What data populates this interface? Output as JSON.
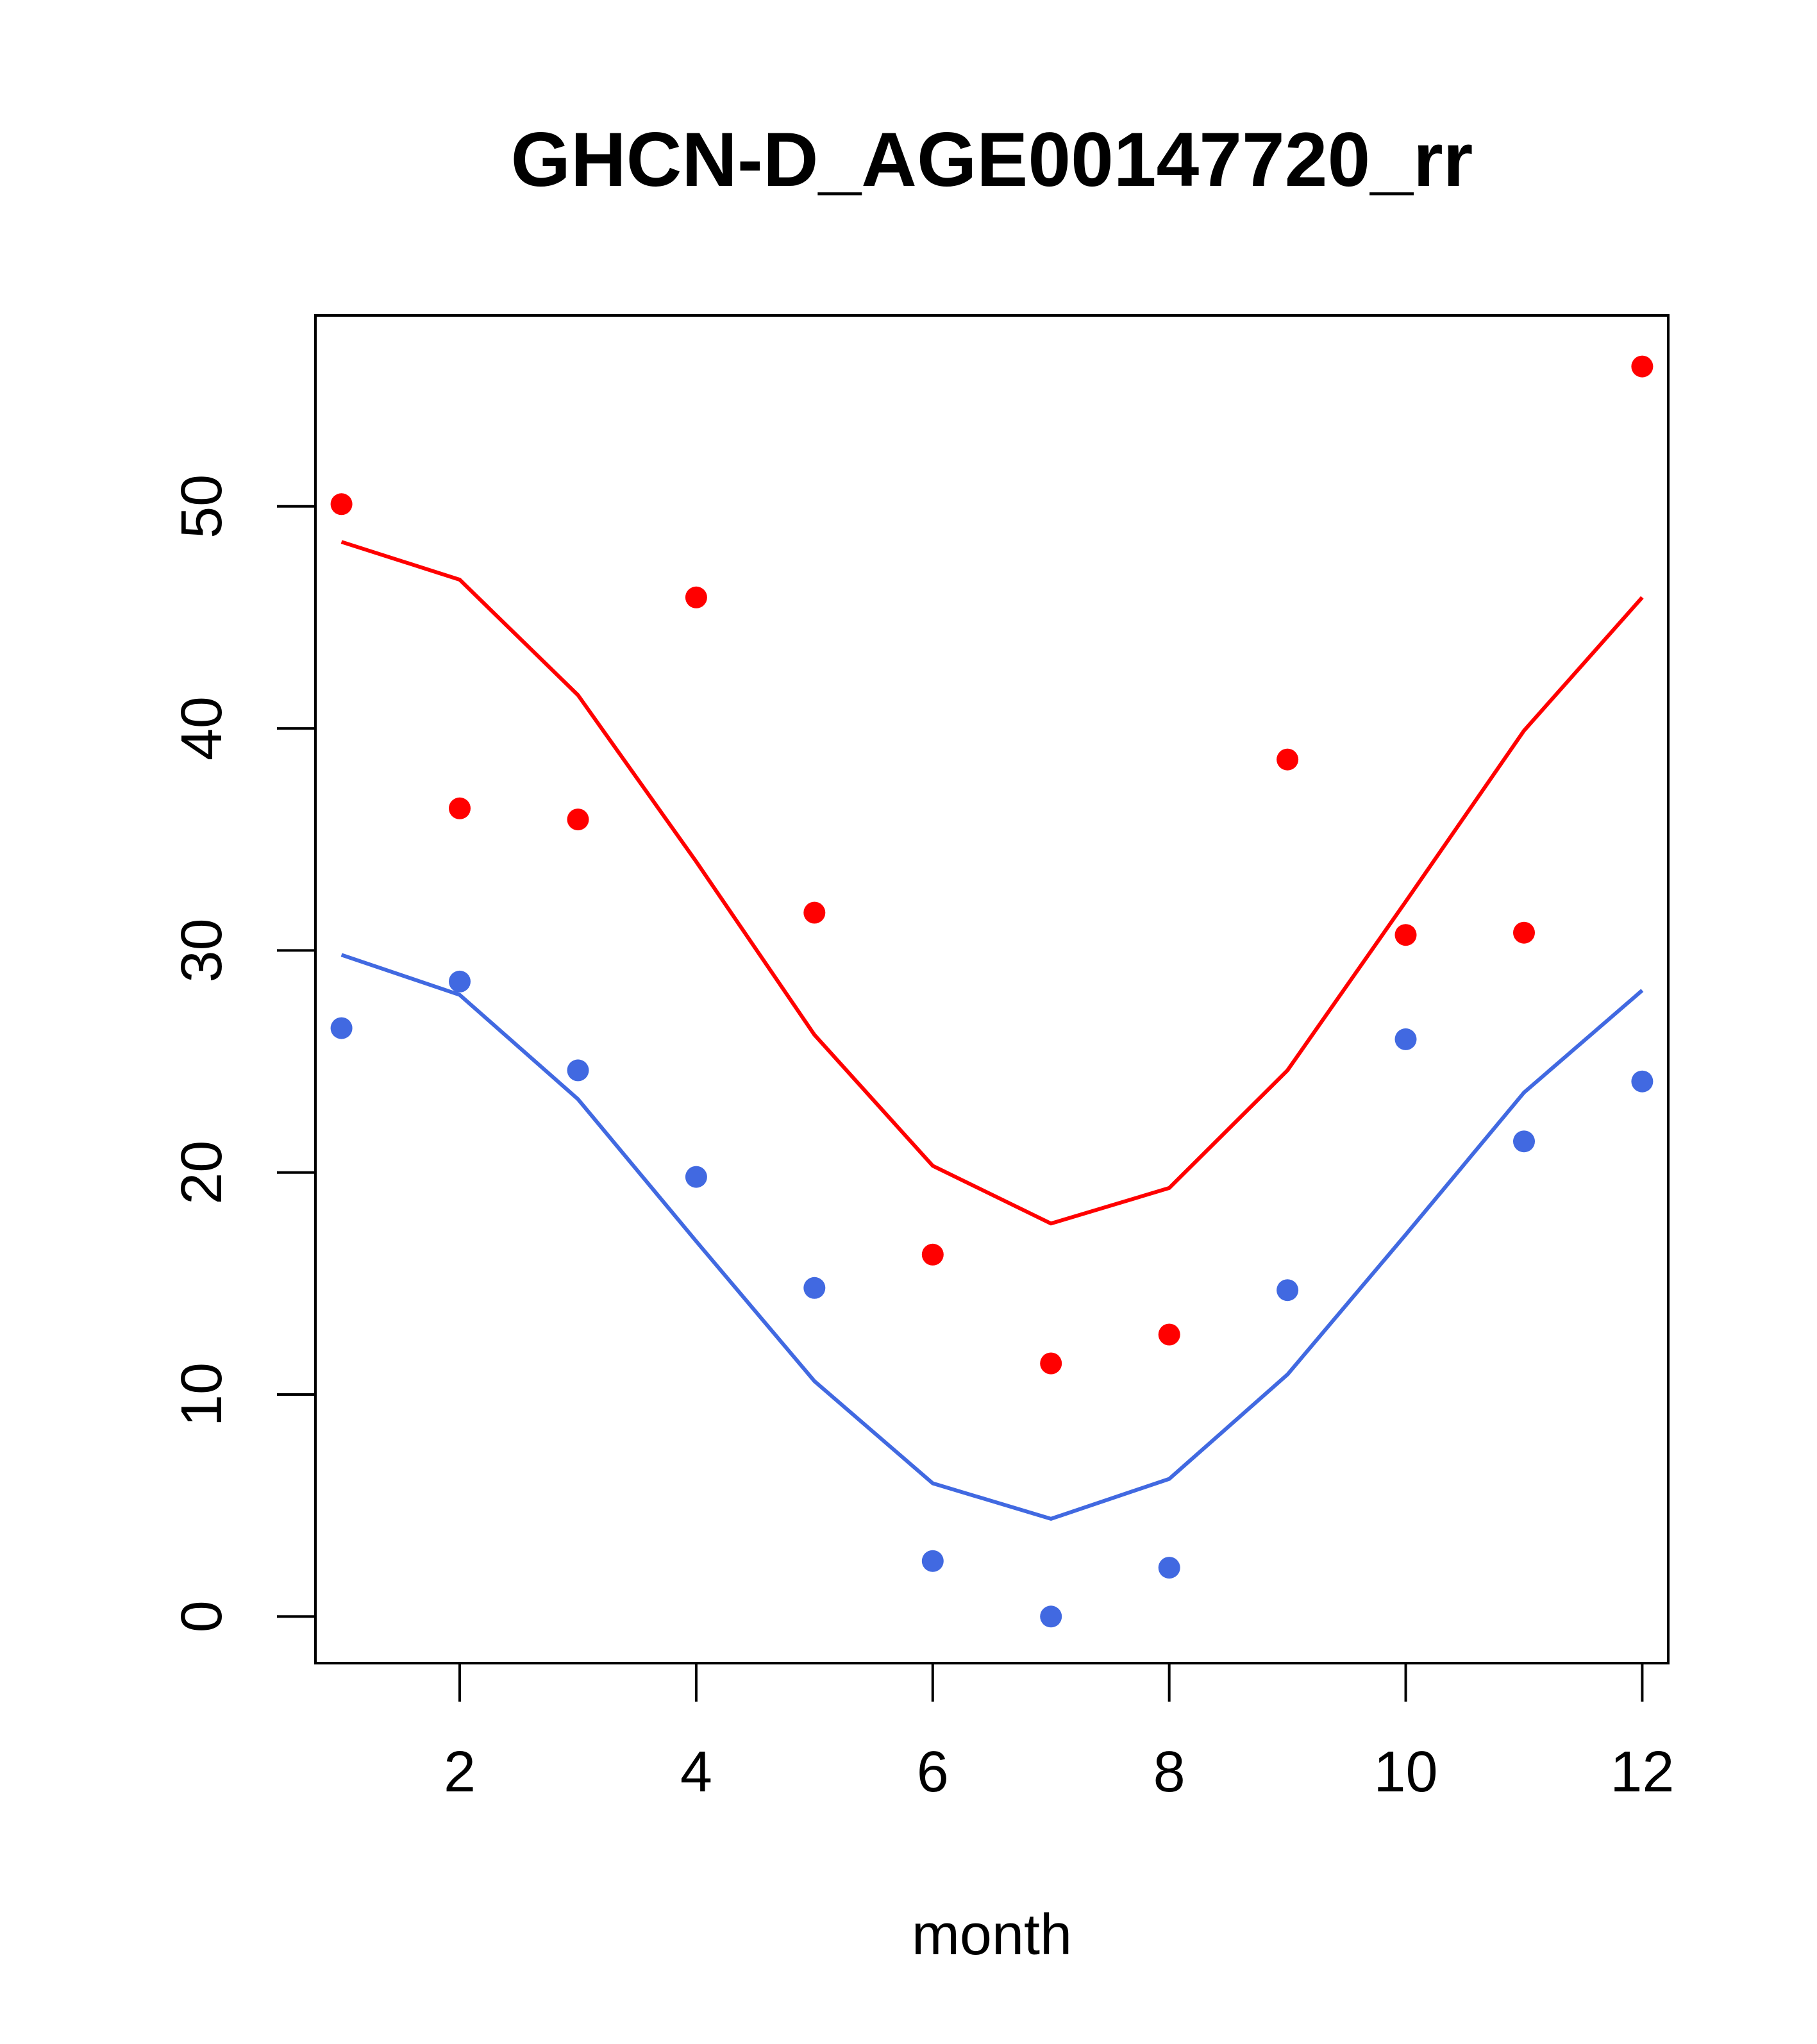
{
  "chart_data": {
    "type": "scatter",
    "title": "GHCN-D_AGE00147720_rr",
    "xlabel": "month",
    "ylabel": "",
    "xlim": [
      0.78,
      12.22
    ],
    "ylim": [
      -2.1,
      58.6
    ],
    "x_ticks": [
      2,
      4,
      6,
      8,
      10,
      12
    ],
    "y_ticks": [
      0,
      10,
      20,
      30,
      40,
      50
    ],
    "grid": false,
    "series": [
      {
        "name": "red points",
        "kind": "points",
        "color": "#ff0000",
        "x": [
          1,
          2,
          3,
          4,
          5,
          6,
          7,
          8,
          9,
          10,
          11,
          12
        ],
        "values": [
          50.1,
          36.4,
          35.9,
          45.9,
          31.7,
          16.3,
          11.4,
          12.7,
          38.6,
          30.7,
          30.8,
          56.3
        ]
      },
      {
        "name": "red line",
        "kind": "line",
        "color": "#ff0000",
        "x": [
          1,
          2,
          3,
          4,
          5,
          6,
          7,
          8,
          9,
          10,
          11,
          12
        ],
        "values": [
          48.4,
          46.7,
          41.5,
          34.0,
          26.2,
          20.3,
          17.7,
          19.3,
          24.6,
          32.2,
          39.9,
          45.9
        ]
      },
      {
        "name": "blue points",
        "kind": "points",
        "color": "#4169e1",
        "x": [
          1,
          2,
          3,
          4,
          5,
          6,
          7,
          8,
          9,
          10,
          11,
          12
        ],
        "values": [
          26.5,
          28.6,
          24.6,
          19.8,
          14.8,
          2.5,
          0.0,
          2.2,
          14.7,
          26.0,
          21.4,
          24.1
        ]
      },
      {
        "name": "blue line",
        "kind": "line",
        "color": "#4169e1",
        "x": [
          1,
          2,
          3,
          4,
          5,
          6,
          7,
          8,
          9,
          10,
          11,
          12
        ],
        "values": [
          29.8,
          28.0,
          23.3,
          16.9,
          10.6,
          6.0,
          4.4,
          6.2,
          10.9,
          17.2,
          23.6,
          28.2
        ]
      }
    ]
  }
}
